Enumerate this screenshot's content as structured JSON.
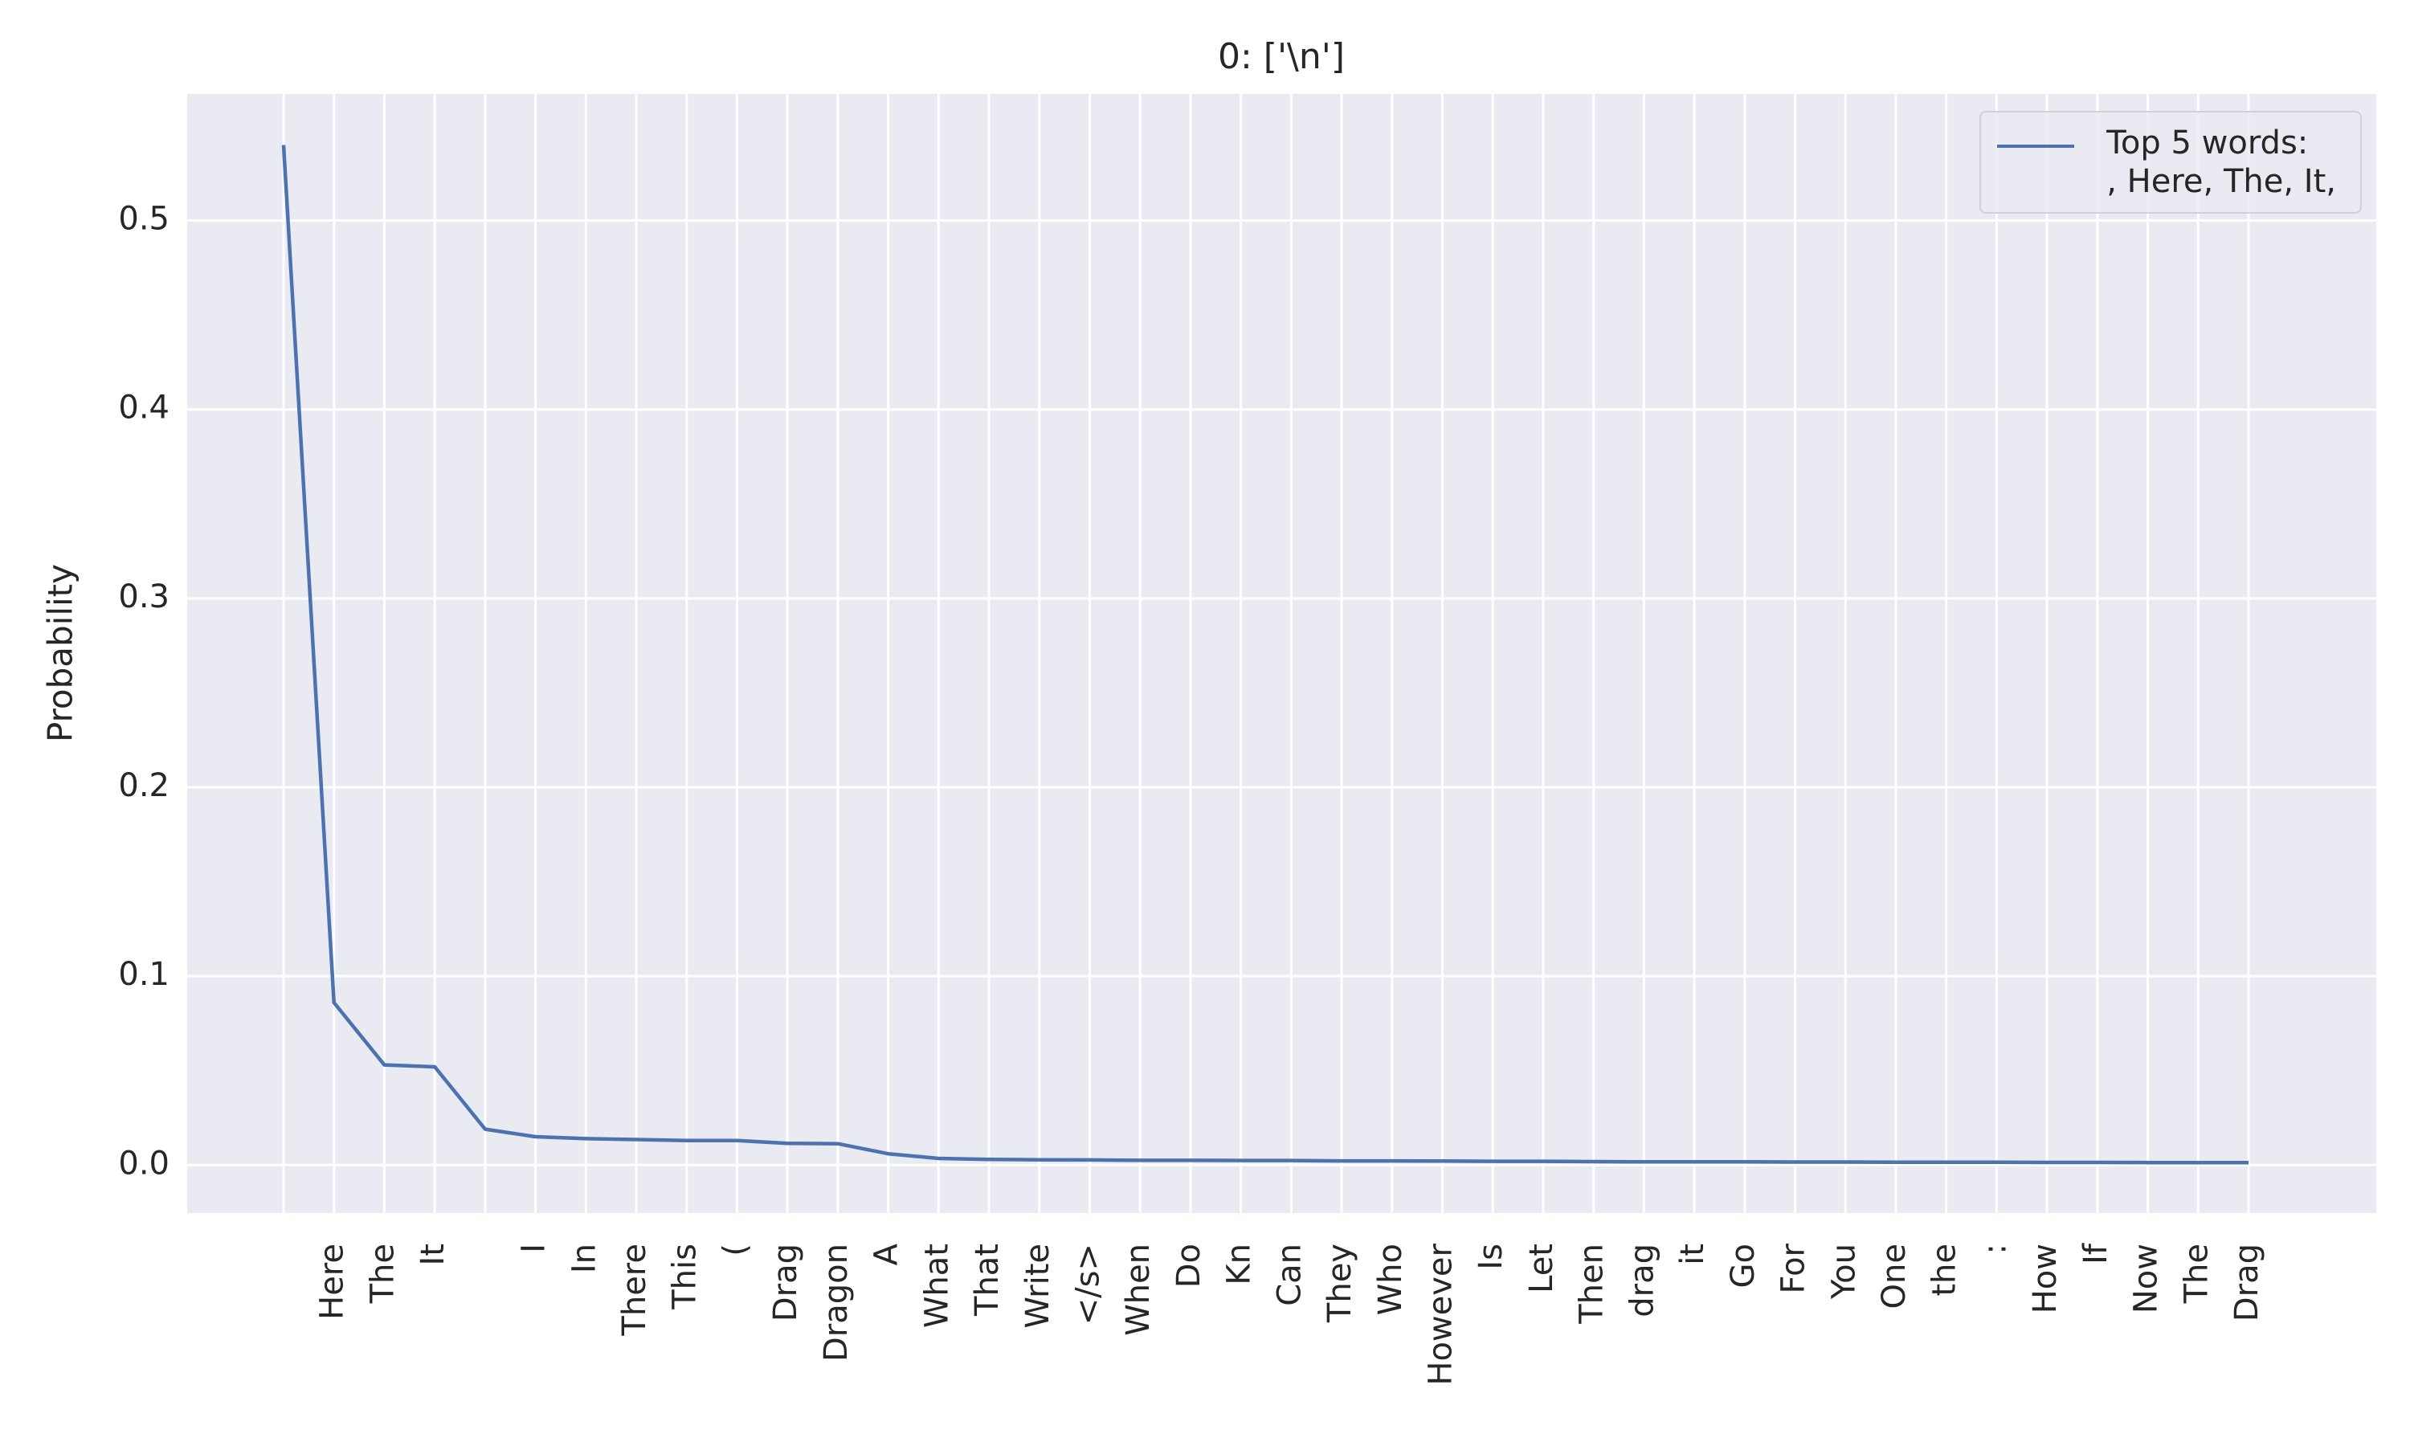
{
  "chart_data": {
    "type": "line",
    "title": "0: ['\\n']",
    "ylabel": "Probability",
    "categories": [
      null,
      "Here",
      "The",
      "It",
      null,
      "I",
      "In",
      "There",
      "This",
      "(",
      "Drag",
      "Dragon",
      "A",
      "What",
      "That",
      "Write",
      "</s>",
      "When",
      "Do",
      "Kn",
      "Can",
      "They",
      "Who",
      "However",
      "Is",
      "Let",
      "Then",
      "drag",
      "it",
      "Go",
      "For",
      "You",
      "One",
      "the",
      ":",
      "How",
      "If",
      "Now",
      "The",
      "Drag"
    ],
    "series": [
      {
        "name": "Top 5 words:\n, Here, The, It,",
        "color": "#4c72b0",
        "values": [
          0.54,
          0.086,
          0.053,
          0.052,
          0.019,
          0.015,
          0.014,
          0.0135,
          0.013,
          0.013,
          0.0115,
          0.0113,
          0.006,
          0.0035,
          0.003,
          0.0028,
          0.0027,
          0.0025,
          0.0025,
          0.0024,
          0.0024,
          0.0022,
          0.0022,
          0.0021,
          0.002,
          0.002,
          0.0018,
          0.0017,
          0.0017,
          0.0017,
          0.0016,
          0.0016,
          0.0015,
          0.0015,
          0.0015,
          0.0014,
          0.0014,
          0.0013,
          0.0013,
          0.0013
        ]
      }
    ],
    "ylim": [
      -0.0254,
      0.567
    ],
    "yticks": [
      {
        "value": 0,
        "label": "0.0"
      },
      0.1,
      0.2,
      0.3,
      0.4,
      0.5
    ],
    "grid": true,
    "legend": "upper right"
  }
}
